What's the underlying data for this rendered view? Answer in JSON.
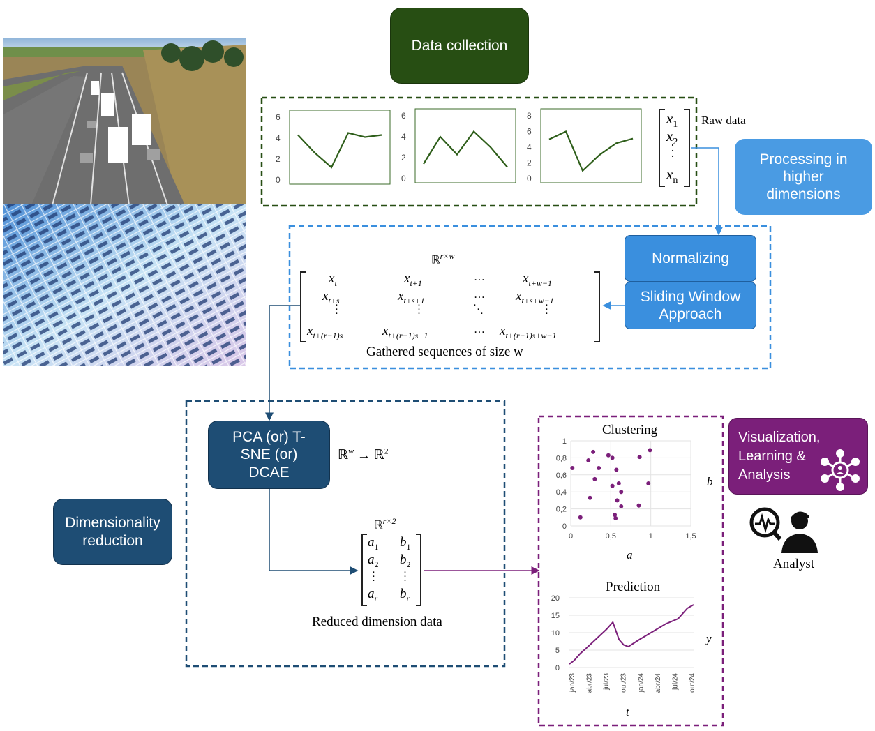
{
  "boxes": {
    "data_collection": "Data collection",
    "processing": "Processing in higher dimensions",
    "normalizing": "Normalizing",
    "sliding_window": "Sliding Window Approach",
    "pca": "PCA (or) T-SNE (or) DCAE",
    "dimensionality": "Dimensionality reduction",
    "visualization": "Visualization, Learning & Analysis"
  },
  "labels": {
    "raw_data": "Raw data",
    "gathered": "Gathered sequences of size w",
    "reduced": "Reduced dimension data",
    "analyst": "Analyst",
    "space_rw": "ℝ^{r×w}",
    "map": "ℝ^w → ℝ^2",
    "space_r2": "ℝ^{r×2}"
  },
  "mini_charts": [
    {
      "type": "line",
      "values": [
        4.3,
        2.6,
        1.2,
        4.5,
        4.1,
        4.3
      ],
      "yticks": [
        "6",
        "4",
        "2",
        "0"
      ],
      "ylim": [
        0,
        6
      ]
    },
    {
      "type": "line",
      "values": [
        1.4,
        4.0,
        2.3,
        4.5,
        3.0,
        1.1
      ],
      "yticks": [
        "6",
        "4",
        "2",
        "0"
      ],
      "ylim": [
        0,
        6
      ]
    },
    {
      "type": "line",
      "values": [
        5.0,
        6.0,
        1.0,
        3.0,
        4.5,
        5.1
      ],
      "yticks": [
        "8",
        "6",
        "4",
        "2",
        "0"
      ],
      "ylim": [
        0,
        8
      ]
    }
  ],
  "chart_data": [
    {
      "type": "scatter",
      "title": "Clustering",
      "xlabel": "a",
      "ylabel": "b",
      "xlim": [
        0,
        1.5
      ],
      "ylim": [
        0,
        1
      ],
      "xticks": [
        "0",
        "0,5",
        "1",
        "1,5"
      ],
      "yticks": [
        "1",
        "0,8",
        "0,6",
        "0,4",
        "0,2",
        "0"
      ],
      "color": "#7b1f7a",
      "points": [
        [
          0.02,
          0.68
        ],
        [
          0.12,
          0.1
        ],
        [
          0.22,
          0.77
        ],
        [
          0.24,
          0.33
        ],
        [
          0.28,
          0.87
        ],
        [
          0.3,
          0.55
        ],
        [
          0.35,
          0.68
        ],
        [
          0.47,
          0.83
        ],
        [
          0.52,
          0.8
        ],
        [
          0.52,
          0.47
        ],
        [
          0.55,
          0.13
        ],
        [
          0.56,
          0.09
        ],
        [
          0.57,
          0.66
        ],
        [
          0.58,
          0.3
        ],
        [
          0.6,
          0.5
        ],
        [
          0.63,
          0.23
        ],
        [
          0.63,
          0.4
        ],
        [
          0.85,
          0.24
        ],
        [
          0.86,
          0.81
        ],
        [
          0.97,
          0.5
        ],
        [
          0.99,
          0.89
        ]
      ]
    },
    {
      "type": "line",
      "title": "Prediction",
      "xlabel": "t",
      "ylabel": "y",
      "ylim": [
        0,
        20
      ],
      "yticks": [
        "20",
        "15",
        "10",
        "5",
        "0"
      ],
      "xticks": [
        "jan/23",
        "abr/23",
        "jul/23",
        "out/23",
        "jan/24",
        "abr/24",
        "jul/24",
        "out/24"
      ],
      "color": "#7b1f7a",
      "points": [
        [
          0,
          1
        ],
        [
          0.3,
          2
        ],
        [
          0.7,
          4
        ],
        [
          1.2,
          6
        ],
        [
          2.4,
          11
        ],
        [
          2.8,
          13
        ],
        [
          3.2,
          8
        ],
        [
          3.5,
          6.5
        ],
        [
          3.8,
          6
        ],
        [
          4.5,
          8
        ],
        [
          6.2,
          12.5
        ],
        [
          7.0,
          14
        ],
        [
          7.6,
          17
        ],
        [
          8.0,
          18
        ]
      ]
    }
  ],
  "colors": {
    "dark_green": "#274e13",
    "blue": "#3a8fde",
    "navy": "#1e4d74",
    "purple": "#7b1f7a",
    "series": "#2e5e1a"
  }
}
